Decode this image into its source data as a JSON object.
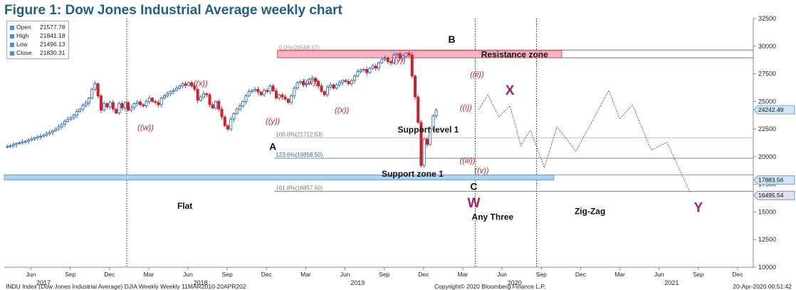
{
  "title": "Figure 1: Dow Jones Industrial Average weekly chart",
  "legend": [
    {
      "label": "Open",
      "value": "21577.78"
    },
    {
      "label": "High",
      "value": "21841.18"
    },
    {
      "label": "Low",
      "value": "21496.13"
    },
    {
      "label": "Close",
      "value": "21830.31"
    }
  ],
  "footer": {
    "left": "INDU Index (Dow Jones Industrial Average) DJIA Weekly  Weekly 11MAR2010-20APR202",
    "center": "Copyright© 2020 Bloomberg Finance L.P.",
    "right": "20-Apr-2020 00:51:42"
  },
  "colors": {
    "up": "#1a5fbf",
    "down": "#d0202a",
    "wave": "#c0202a",
    "xy": "#a0206a",
    "resistance": "#f8b3c0",
    "support": "#a9d3f3"
  },
  "chart_data": {
    "type": "candlestick",
    "ylim": [
      10000,
      32500
    ],
    "y_ticks": [
      10000,
      12500,
      15000,
      17500,
      20000,
      22500,
      25000,
      27500,
      30000,
      32500
    ],
    "x_ticks": [
      {
        "label": "Jun",
        "t": 2017.42
      },
      {
        "label": "Sep",
        "t": 2017.67
      },
      {
        "label": "Dec",
        "t": 2017.92
      },
      {
        "label": "Mar",
        "t": 2018.17
      },
      {
        "label": "Jun",
        "t": 2018.42
      },
      {
        "label": "Sep",
        "t": 2018.67
      },
      {
        "label": "Dec",
        "t": 2018.92
      },
      {
        "label": "Mar",
        "t": 2019.17
      },
      {
        "label": "Jun",
        "t": 2019.42
      },
      {
        "label": "Sep",
        "t": 2019.67
      },
      {
        "label": "Dec",
        "t": 2019.92
      },
      {
        "label": "Mar",
        "t": 2020.17
      },
      {
        "label": "Jun",
        "t": 2020.42
      },
      {
        "label": "Sep",
        "t": 2020.67
      },
      {
        "label": "Dec",
        "t": 2020.92
      },
      {
        "label": "Mar",
        "t": 2021.17
      },
      {
        "label": "Jun",
        "t": 2021.42
      },
      {
        "label": "Sep",
        "t": 2021.67
      },
      {
        "label": "Dec",
        "t": 2021.92
      }
    ],
    "year_labels": [
      {
        "label": "2017",
        "t": 2017.5
      },
      {
        "label": "2018",
        "t": 2018.5
      },
      {
        "label": "2019",
        "t": 2019.5
      },
      {
        "label": "2020",
        "t": 2020.5
      },
      {
        "label": "2021",
        "t": 2021.5
      }
    ],
    "last_price_tags": [
      {
        "label": "24242.49",
        "y": 24242.49
      },
      {
        "label": "17883.56",
        "y": 17883.56
      },
      {
        "label": "16495.54",
        "y": 16495.54
      }
    ],
    "fib_levels": [
      {
        "label": "0.0%(29568.57)",
        "y": 29568.57
      },
      {
        "label": "100.0%(21712.53)",
        "y": 21712.53
      },
      {
        "label": "123.6%(19858.50)",
        "y": 19858.5
      },
      {
        "label": "161.8%(16857.50)",
        "y": 16857.5
      }
    ],
    "zones": [
      {
        "label": "Resistance zone",
        "y0": 28950,
        "y1": 29650
      },
      {
        "label": "Support zone 1",
        "y0": 17900,
        "y1": 18350
      }
    ],
    "levels": [
      {
        "label": "Support level 1",
        "y": 21712.53
      }
    ],
    "closes": [
      20950,
      21000,
      21100,
      21200,
      21250,
      21350,
      21400,
      21500,
      21600,
      21700,
      21800,
      21850,
      21950,
      22100,
      22200,
      22350,
      22500,
      22700,
      22950,
      23200,
      23400,
      23550,
      23750,
      24100,
      24300,
      24650,
      24850,
      25300,
      26100,
      26600,
      25500,
      24200,
      24800,
      24500,
      24900,
      24300,
      23950,
      24800,
      24400,
      24900,
      24200,
      24450,
      24800,
      24950,
      24700,
      24600,
      25000,
      25300,
      25000,
      24900,
      24700,
      25300,
      25500,
      25700,
      25900,
      26000,
      26200,
      26400,
      26600,
      26450,
      26700,
      26400,
      26100,
      25100,
      25400,
      25700,
      25600,
      24700,
      24400,
      25000,
      24300,
      23600,
      22800,
      22500,
      23400,
      23900,
      24300,
      24600,
      25000,
      25500,
      25900,
      26000,
      26100,
      25850,
      25600,
      26000,
      25900,
      26400,
      25950,
      25300,
      25600,
      25400,
      25200,
      24900,
      25500,
      26200,
      26700,
      26800,
      26500,
      26600,
      27000,
      27100,
      26800,
      26400,
      25900,
      25600,
      26300,
      26500,
      26200,
      26500,
      26700,
      26900,
      26800,
      26600,
      26900,
      27300,
      27700,
      27850,
      27900,
      27600,
      28000,
      28200,
      28000,
      28500,
      28800,
      28900,
      28600,
      28500,
      29200,
      29300,
      28900,
      29100,
      29350,
      29200,
      27300,
      25400,
      23100,
      19200,
      21600,
      21100,
      22500,
      23700,
      24200
    ],
    "projection": [
      {
        "t": 2020.27,
        "y": 24250
      },
      {
        "t": 2020.33,
        "y": 25600
      },
      {
        "t": 2020.4,
        "y": 23600
      },
      {
        "t": 2020.47,
        "y": 24600
      },
      {
        "t": 2020.54,
        "y": 21000
      },
      {
        "t": 2020.6,
        "y": 22400
      },
      {
        "t": 2020.69,
        "y": 19000
      },
      {
        "t": 2020.77,
        "y": 22700
      },
      {
        "t": 2020.89,
        "y": 20500
      },
      {
        "t": 2021.1,
        "y": 26000
      },
      {
        "t": 2021.17,
        "y": 23400
      },
      {
        "t": 2021.25,
        "y": 24700
      },
      {
        "t": 2021.37,
        "y": 20600
      },
      {
        "t": 2021.47,
        "y": 21300
      },
      {
        "t": 2021.62,
        "y": 16700
      }
    ],
    "annotations": [
      {
        "label": "A",
        "t": 2018.96,
        "y": 20600,
        "kind": "major"
      },
      {
        "label": "B",
        "t": 2020.1,
        "y": 30300,
        "kind": "major"
      },
      {
        "label": "C",
        "t": 2020.24,
        "y": 17000,
        "kind": "major"
      },
      {
        "label": "X",
        "t": 2020.47,
        "y": 25600,
        "kind": "xy"
      },
      {
        "label": "W",
        "t": 2020.24,
        "y": 15400,
        "kind": "xy"
      },
      {
        "label": "Y",
        "t": 2021.67,
        "y": 15000,
        "kind": "xy"
      },
      {
        "label": "((w))",
        "t": 2018.15,
        "y": 22400,
        "kind": "wave"
      },
      {
        "label": "((x))",
        "t": 2018.5,
        "y": 26400,
        "kind": "wave"
      },
      {
        "label": "((y))",
        "t": 2018.96,
        "y": 23000,
        "kind": "wave"
      },
      {
        "label": "((w))",
        "t": 2019.2,
        "y": 26500,
        "kind": "wave"
      },
      {
        "label": "((x))",
        "t": 2019.4,
        "y": 24000,
        "kind": "wave"
      },
      {
        "label": "((y))",
        "t": 2019.76,
        "y": 28500,
        "kind": "wave"
      },
      {
        "label": "((ii))",
        "t": 2020.26,
        "y": 27200,
        "kind": "wave"
      },
      {
        "label": "((i))",
        "t": 2020.19,
        "y": 24200,
        "kind": "wave"
      },
      {
        "label": "((iii))",
        "t": 2020.2,
        "y": 19400,
        "kind": "wave"
      },
      {
        "label": "((v))",
        "t": 2020.29,
        "y": 18500,
        "kind": "wave"
      },
      {
        "label": "Support level 1",
        "t": 2019.95,
        "y": 22200,
        "kind": "text"
      },
      {
        "label": "Resistance zone",
        "t": 2020.5,
        "y": 29000,
        "kind": "text"
      },
      {
        "label": "Support zone 1",
        "t": 2019.85,
        "y": 18200,
        "kind": "text"
      },
      {
        "label": "Flat",
        "t": 2018.4,
        "y": 15300,
        "kind": "text"
      },
      {
        "label": "Any Three",
        "t": 2020.36,
        "y": 14300,
        "kind": "text"
      },
      {
        "label": "Zig-Zag",
        "t": 2020.98,
        "y": 14800,
        "kind": "text"
      }
    ]
  }
}
